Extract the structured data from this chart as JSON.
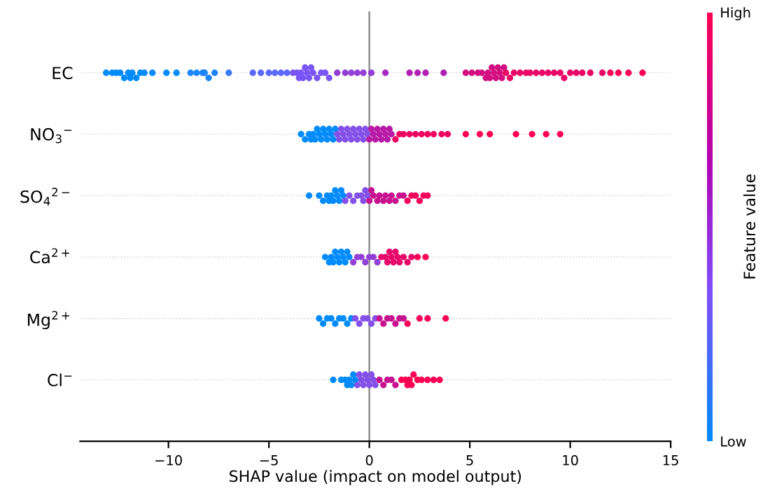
{
  "chart_data": {
    "type": "scatter",
    "orientation": "horizontal",
    "xlabel": "SHAP value (impact on model output)",
    "clabel": "Feature value",
    "categories": [
      "EC",
      "NO$_{3}$$^{−}$",
      "SO$_{4}$$^{2−}$",
      "Ca$^{2+}$",
      "Mg$^{2+}$",
      "Cl$^{−}$"
    ],
    "xlim": [
      -14.4,
      15
    ],
    "xticks": [
      {
        "value": -10,
        "label": "−10"
      },
      {
        "value": -5,
        "label": "−5"
      },
      0,
      5,
      10,
      15
    ],
    "clim": [
      0,
      1
    ],
    "cticks": [
      {
        "value": 0,
        "label": "Low"
      },
      {
        "value": 1,
        "label": "High"
      }
    ],
    "grid": "y",
    "marker": "circle",
    "ref_lines": [
      {
        "axis": "x",
        "value": 0,
        "color": "#999999"
      }
    ],
    "series": [
      {
        "x": [
          "EC",
          "EC",
          "EC",
          "EC",
          "EC",
          "EC",
          "EC",
          "EC",
          "EC",
          "EC",
          "EC",
          "EC",
          "EC",
          "EC",
          "EC",
          "EC",
          "EC",
          "EC",
          "EC",
          "EC",
          "EC",
          "EC",
          "EC",
          "EC",
          "EC",
          "EC",
          "EC",
          "EC",
          "EC",
          "EC",
          "EC",
          "EC",
          "EC",
          "EC",
          "EC",
          "EC",
          "EC",
          "EC",
          "EC",
          "EC",
          "EC",
          "EC",
          "EC",
          "EC",
          "EC",
          "EC",
          "EC",
          "EC",
          "EC",
          "EC",
          "EC",
          "EC",
          "EC",
          "EC",
          "EC",
          "EC",
          "EC",
          "EC",
          "EC",
          "EC",
          "EC",
          "EC",
          "EC",
          "EC",
          "EC",
          "EC",
          "EC",
          "EC",
          "EC",
          "EC",
          "EC",
          "EC",
          "EC",
          "EC",
          "EC",
          "EC",
          "EC",
          "EC",
          "EC",
          "EC",
          "EC",
          "EC",
          "EC",
          "EC",
          "EC",
          "EC",
          "EC"
        ],
        "values": [
          -13.1,
          -12.8,
          -12.6,
          -12.4,
          -12.2,
          -12.0,
          -11.9,
          -11.8,
          -11.6,
          -11.4,
          -11.2,
          -10.8,
          -10.1,
          -9.6,
          -8.9,
          -8.6,
          -8.3,
          -8.2,
          -8.0,
          -7.7,
          -7.0,
          -5.8,
          -5.4,
          -5.0,
          -4.7,
          -4.4,
          -4.1,
          -3.8,
          -3.6,
          -3.5,
          -3.4,
          -3.3,
          -3.2,
          -3.1,
          -3.0,
          -2.9,
          -2.8,
          -2.6,
          -2.4,
          -2.2,
          -2.0,
          -1.6,
          -1.2,
          -0.9,
          -0.6,
          -0.3,
          0.1,
          0.8,
          2.0,
          2.4,
          2.8,
          3.7,
          4.8,
          5.1,
          5.4,
          5.6,
          5.8,
          5.9,
          6.0,
          6.1,
          6.2,
          6.3,
          6.4,
          6.5,
          6.6,
          6.7,
          6.8,
          7.0,
          7.2,
          7.5,
          7.8,
          8.0,
          8.3,
          8.6,
          8.9,
          9.2,
          9.5,
          9.7,
          10.0,
          10.3,
          10.6,
          11.0,
          11.6,
          12.0,
          12.4,
          12.9,
          13.6
        ],
        "colors": [
          "#008bfb",
          "#008bfb",
          "#008bfb",
          "#008bfb",
          "#008bfb",
          "#008bfb",
          "#008bfb",
          "#008bfb",
          "#008bfb",
          "#008bfb",
          "#008bfb",
          "#008bfb",
          "#008bfb",
          "#008bfb",
          "#1c84fc",
          "#1c84fc",
          "#1c84fc",
          "#1c84fc",
          "#1c84fc",
          "#1c84fc",
          "#3a78fd",
          "#5a69fe",
          "#5a69fe",
          "#5a69fe",
          "#5a69fe",
          "#5a69fe",
          "#5a69fe",
          "#7a55f6",
          "#7a55f6",
          "#7a55f6",
          "#7a55f6",
          "#7a55f6",
          "#7a55f6",
          "#7a55f6",
          "#7a55f6",
          "#7a55f6",
          "#7a55f6",
          "#7a55f6",
          "#7a55f6",
          "#7a55f6",
          "#7a55f6",
          "#923fd6",
          "#923fd6",
          "#923fd6",
          "#923fd6",
          "#923fd6",
          "#923fd6",
          "#a82ac0",
          "#b01fb4",
          "#b01fb4",
          "#b01fb4",
          "#b01fb4",
          "#d20e80",
          "#d20e80",
          "#d20e80",
          "#d20e80",
          "#d20e80",
          "#d20e80",
          "#d20e80",
          "#d20e80",
          "#d20e80",
          "#d20e80",
          "#d20e80",
          "#d20e80",
          "#d20e80",
          "#d20e80",
          "#ea0666",
          "#ea0666",
          "#ea0666",
          "#ea0666",
          "#ea0666",
          "#ea0666",
          "#ea0666",
          "#ea0666",
          "#ea0666",
          "#ea0666",
          "#ea0666",
          "#ea0666",
          "#ea0666",
          "#ea0666",
          "#ea0666",
          "#ea0666",
          "#ea0666",
          "#fb0255",
          "#fb0255",
          "#fb0255",
          "#fb0255"
        ]
      },
      {
        "x": [
          "NO$_{3}$$^{−}$",
          "NO$_{3}$$^{−}$",
          "NO$_{3}$$^{−}$",
          "NO$_{3}$$^{−}$",
          "NO$_{3}$$^{−}$",
          "NO$_{3}$$^{−}$",
          "NO$_{3}$$^{−}$",
          "NO$_{3}$$^{−}$",
          "NO$_{3}$$^{−}$",
          "NO$_{3}$$^{−}$",
          "NO$_{3}$$^{−}$",
          "NO$_{3}$$^{−}$",
          "NO$_{3}$$^{−}$",
          "NO$_{3}$$^{−}$",
          "NO$_{3}$$^{−}$",
          "NO$_{3}$$^{−}$",
          "NO$_{3}$$^{−}$",
          "NO$_{3}$$^{−}$",
          "NO$_{3}$$^{−}$",
          "NO$_{3}$$^{−}$",
          "NO$_{3}$$^{−}$",
          "NO$_{3}$$^{−}$",
          "NO$_{3}$$^{−}$",
          "NO$_{3}$$^{−}$",
          "NO$_{3}$$^{−}$",
          "NO$_{3}$$^{−}$",
          "NO$_{3}$$^{−}$",
          "NO$_{3}$$^{−}$",
          "NO$_{3}$$^{−}$",
          "NO$_{3}$$^{−}$",
          "NO$_{3}$$^{−}$",
          "NO$_{3}$$^{−}$",
          "NO$_{3}$$^{−}$",
          "NO$_{3}$$^{−}$",
          "NO$_{3}$$^{−}$",
          "NO$_{3}$$^{−}$",
          "NO$_{3}$$^{−}$",
          "NO$_{3}$$^{−}$",
          "NO$_{3}$$^{−}$",
          "NO$_{3}$$^{−}$",
          "NO$_{3}$$^{−}$",
          "NO$_{3}$$^{−}$",
          "NO$_{3}$$^{−}$",
          "NO$_{3}$$^{−}$",
          "NO$_{3}$$^{−}$",
          "NO$_{3}$$^{−}$",
          "NO$_{3}$$^{−}$",
          "NO$_{3}$$^{−}$",
          "NO$_{3}$$^{−}$",
          "NO$_{3}$$^{−}$",
          "NO$_{3}$$^{−}$",
          "NO$_{3}$$^{−}$",
          "NO$_{3}$$^{−}$",
          "NO$_{3}$$^{−}$",
          "NO$_{3}$$^{−}$",
          "NO$_{3}$$^{−}$",
          "NO$_{3}$$^{−}$",
          "NO$_{3}$$^{−}$",
          "NO$_{3}$$^{−}$",
          "NO$_{3}$$^{−}$",
          "NO$_{3}$$^{−}$"
        ],
        "values": [
          -3.4,
          -3.2,
          -3.0,
          -2.9,
          -2.8,
          -2.7,
          -2.6,
          -2.5,
          -2.4,
          -2.3,
          -2.2,
          -2.1,
          -2.0,
          -1.9,
          -1.8,
          -1.7,
          -1.6,
          -1.5,
          -1.4,
          -1.3,
          -1.2,
          -1.1,
          -1.0,
          -0.9,
          -0.8,
          -0.7,
          -0.6,
          -0.5,
          -0.4,
          -0.3,
          -0.2,
          -0.1,
          0.0,
          0.1,
          0.2,
          0.3,
          0.4,
          0.5,
          0.6,
          0.7,
          0.8,
          0.9,
          1.0,
          1.1,
          1.3,
          1.5,
          1.7,
          2.0,
          2.3,
          2.6,
          2.9,
          3.2,
          3.6,
          3.9,
          4.8,
          5.5,
          6.0,
          7.3,
          8.1,
          8.8,
          9.5
        ],
        "colors": [
          "#008bfb",
          "#008bfb",
          "#008bfb",
          "#008bfb",
          "#008bfb",
          "#008bfb",
          "#008bfb",
          "#008bfb",
          "#008bfb",
          "#008bfb",
          "#008bfb",
          "#008bfb",
          "#008bfb",
          "#008bfb",
          "#008bfb",
          "#008bfb",
          "#8450e8",
          "#8450e8",
          "#8450e8",
          "#8450e8",
          "#8450e8",
          "#8450e8",
          "#8450e8",
          "#8450e8",
          "#8450e8",
          "#8450e8",
          "#8450e8",
          "#8450e8",
          "#8450e8",
          "#8450e8",
          "#8450e8",
          "#8450e8",
          "#b819a6",
          "#b819a6",
          "#b819a6",
          "#b819a6",
          "#b819a6",
          "#b819a6",
          "#b819a6",
          "#b819a6",
          "#b819a6",
          "#b819a6",
          "#b819a6",
          "#b819a6",
          "#ee0562",
          "#ee0562",
          "#ee0562",
          "#ee0562",
          "#ee0562",
          "#ee0562",
          "#ee0562",
          "#ee0562",
          "#ee0562",
          "#ee0562",
          "#fd0153",
          "#fd0153",
          "#fd0153",
          "#fd0153",
          "#fd0153",
          "#fd0153",
          "#fd0153"
        ]
      },
      {
        "x": [
          "SO$_{4}$$^{2−}$",
          "SO$_{4}$$^{2−}$",
          "SO$_{4}$$^{2−}$",
          "SO$_{4}$$^{2−}$",
          "SO$_{4}$$^{2−}$",
          "SO$_{4}$$^{2−}$",
          "SO$_{4}$$^{2−}$",
          "SO$_{4}$$^{2−}$",
          "SO$_{4}$$^{2−}$",
          "SO$_{4}$$^{2−}$",
          "SO$_{4}$$^{2−}$",
          "SO$_{4}$$^{2−}$",
          "SO$_{4}$$^{2−}$",
          "SO$_{4}$$^{2−}$",
          "SO$_{4}$$^{2−}$",
          "SO$_{4}$$^{2−}$",
          "SO$_{4}$$^{2−}$",
          "SO$_{4}$$^{2−}$",
          "SO$_{4}$$^{2−}$",
          "SO$_{4}$$^{2−}$",
          "SO$_{4}$$^{2−}$",
          "SO$_{4}$$^{2−}$",
          "SO$_{4}$$^{2−}$",
          "SO$_{4}$$^{2−}$",
          "SO$_{4}$$^{2−}$",
          "SO$_{4}$$^{2−}$",
          "SO$_{4}$$^{2−}$",
          "SO$_{4}$$^{2−}$",
          "SO$_{4}$$^{2−}$",
          "SO$_{4}$$^{2−}$",
          "SO$_{4}$$^{2−}$",
          "SO$_{4}$$^{2−}$",
          "SO$_{4}$$^{2−}$",
          "SO$_{4}$$^{2−}$",
          "SO$_{4}$$^{2−}$",
          "SO$_{4}$$^{2−}$",
          "SO$_{4}$$^{2−}$",
          "SO$_{4}$$^{2−}$"
        ],
        "values": [
          -3.0,
          -2.5,
          -2.3,
          -2.1,
          -2.0,
          -1.9,
          -1.8,
          -1.7,
          -1.6,
          -1.5,
          -1.4,
          -1.3,
          -1.2,
          -1.0,
          -0.8,
          -0.6,
          -0.4,
          -0.3,
          -0.2,
          -0.1,
          0.0,
          0.1,
          0.2,
          0.4,
          0.5,
          0.7,
          0.8,
          1.0,
          1.1,
          1.3,
          1.5,
          1.7,
          1.9,
          2.1,
          2.3,
          2.5,
          2.7,
          2.9
        ],
        "colors": [
          "#008bfb",
          "#008bfb",
          "#008bfb",
          "#008bfb",
          "#008bfb",
          "#008bfb",
          "#008bfb",
          "#008bfb",
          "#008bfb",
          "#008bfb",
          "#008bfb",
          "#008bfb",
          "#8450e8",
          "#8450e8",
          "#8450e8",
          "#8450e8",
          "#8450e8",
          "#8450e8",
          "#8450e8",
          "#8450e8",
          "#c8138f",
          "#c8138f",
          "#c8138f",
          "#c8138f",
          "#c8138f",
          "#c8138f",
          "#c8138f",
          "#c8138f",
          "#c8138f",
          "#c8138f",
          "#c8138f",
          "#c8138f",
          "#f2045c",
          "#f2045c",
          "#f2045c",
          "#f2045c",
          "#f2045c",
          "#f2045c"
        ]
      },
      {
        "x": [
          "Ca$^{2+}$",
          "Ca$^{2+}$",
          "Ca$^{2+}$",
          "Ca$^{2+}$",
          "Ca$^{2+}$",
          "Ca$^{2+}$",
          "Ca$^{2+}$",
          "Ca$^{2+}$",
          "Ca$^{2+}$",
          "Ca$^{2+}$",
          "Ca$^{2+}$",
          "Ca$^{2+}$",
          "Ca$^{2+}$",
          "Ca$^{2+}$",
          "Ca$^{2+}$",
          "Ca$^{2+}$",
          "Ca$^{2+}$",
          "Ca$^{2+}$",
          "Ca$^{2+}$",
          "Ca$^{2+}$",
          "Ca$^{2+}$",
          "Ca$^{2+}$",
          "Ca$^{2+}$",
          "Ca$^{2+}$",
          "Ca$^{2+}$",
          "Ca$^{2+}$",
          "Ca$^{2+}$",
          "Ca$^{2+}$",
          "Ca$^{2+}$",
          "Ca$^{2+}$",
          "Ca$^{2+}$",
          "Ca$^{2+}$",
          "Ca$^{2+}$"
        ],
        "values": [
          -2.2,
          -2.0,
          -1.9,
          -1.8,
          -1.7,
          -1.6,
          -1.5,
          -1.4,
          -1.3,
          -1.2,
          -1.1,
          -1.0,
          -0.8,
          -0.6,
          -0.4,
          -0.2,
          0.0,
          0.2,
          0.4,
          0.6,
          0.8,
          0.9,
          1.0,
          1.1,
          1.2,
          1.3,
          1.4,
          1.5,
          1.7,
          1.9,
          2.1,
          2.4,
          2.8
        ],
        "colors": [
          "#008bfb",
          "#008bfb",
          "#008bfb",
          "#008bfb",
          "#008bfb",
          "#008bfb",
          "#008bfb",
          "#008bfb",
          "#008bfb",
          "#008bfb",
          "#008bfb",
          "#008bfb",
          "#923fd6",
          "#923fd6",
          "#923fd6",
          "#923fd6",
          "#923fd6",
          "#923fd6",
          "#923fd6",
          "#e6086a",
          "#e6086a",
          "#e6086a",
          "#e6086a",
          "#e6086a",
          "#e6086a",
          "#e6086a",
          "#e6086a",
          "#e6086a",
          "#e6086a",
          "#e6086a",
          "#e6086a",
          "#f80358",
          "#f80358"
        ]
      },
      {
        "x": [
          "Mg$^{2+}$",
          "Mg$^{2+}$",
          "Mg$^{2+}$",
          "Mg$^{2+}$",
          "Mg$^{2+}$",
          "Mg$^{2+}$",
          "Mg$^{2+}$",
          "Mg$^{2+}$",
          "Mg$^{2+}$",
          "Mg$^{2+}$",
          "Mg$^{2+}$",
          "Mg$^{2+}$",
          "Mg$^{2+}$",
          "Mg$^{2+}$",
          "Mg$^{2+}$",
          "Mg$^{2+}$",
          "Mg$^{2+}$",
          "Mg$^{2+}$",
          "Mg$^{2+}$",
          "Mg$^{2+}$",
          "Mg$^{2+}$",
          "Mg$^{2+}$",
          "Mg$^{2+}$",
          "Mg$^{2+}$",
          "Mg$^{2+}$",
          "Mg$^{2+}$"
        ],
        "values": [
          -2.5,
          -2.3,
          -2.1,
          -1.9,
          -1.7,
          -1.5,
          -1.3,
          -1.1,
          -0.9,
          -0.7,
          -0.5,
          -0.3,
          -0.1,
          0.1,
          0.3,
          0.5,
          0.7,
          0.9,
          1.1,
          1.3,
          1.5,
          1.7,
          1.9,
          2.5,
          2.9,
          3.8
        ],
        "colors": [
          "#008bfb",
          "#008bfb",
          "#008bfb",
          "#008bfb",
          "#008bfb",
          "#008bfb",
          "#008bfb",
          "#008bfb",
          "#008bfb",
          "#8450e8",
          "#8450e8",
          "#8450e8",
          "#8450e8",
          "#8450e8",
          "#8450e8",
          "#c8138f",
          "#c8138f",
          "#c8138f",
          "#c8138f",
          "#c8138f",
          "#c8138f",
          "#c8138f",
          "#f80358",
          "#f80358",
          "#f80358",
          "#f80358"
        ]
      },
      {
        "x": [
          "Cl$^{−}$",
          "Cl$^{−}$",
          "Cl$^{−}$",
          "Cl$^{−}$",
          "Cl$^{−}$",
          "Cl$^{−}$",
          "Cl$^{−}$",
          "Cl$^{−}$",
          "Cl$^{−}$",
          "Cl$^{−}$",
          "Cl$^{−}$",
          "Cl$^{−}$",
          "Cl$^{−}$",
          "Cl$^{−}$",
          "Cl$^{−}$",
          "Cl$^{−}$",
          "Cl$^{−}$",
          "Cl$^{−}$",
          "Cl$^{−}$",
          "Cl$^{−}$",
          "Cl$^{−}$",
          "Cl$^{−}$",
          "Cl$^{−}$",
          "Cl$^{−}$",
          "Cl$^{−}$",
          "Cl$^{−}$",
          "Cl$^{−}$",
          "Cl$^{−}$",
          "Cl$^{−}$",
          "Cl$^{−}$",
          "Cl$^{−}$",
          "Cl$^{−}$",
          "Cl$^{−}$",
          "Cl$^{−}$"
        ],
        "values": [
          -1.8,
          -1.4,
          -1.2,
          -1.1,
          -1.0,
          -0.9,
          -0.8,
          -0.7,
          -0.6,
          -0.5,
          -0.4,
          -0.3,
          -0.2,
          -0.1,
          0.0,
          0.1,
          0.2,
          0.3,
          0.5,
          0.7,
          0.9,
          1.1,
          1.3,
          1.6,
          1.8,
          1.9,
          2.0,
          2.1,
          2.2,
          2.4,
          2.6,
          2.9,
          3.2,
          3.5
        ],
        "colors": [
          "#008bfb",
          "#008bfb",
          "#008bfb",
          "#008bfb",
          "#008bfb",
          "#008bfb",
          "#008bfb",
          "#008bfb",
          "#8450e8",
          "#8450e8",
          "#8450e8",
          "#8450e8",
          "#8450e8",
          "#8450e8",
          "#8450e8",
          "#8450e8",
          "#8450e8",
          "#8450e8",
          "#c8138f",
          "#c8138f",
          "#c8138f",
          "#c8138f",
          "#c8138f",
          "#fb0255",
          "#fb0255",
          "#fb0255",
          "#fb0255",
          "#fb0255",
          "#fb0255",
          "#fb0255",
          "#fb0255",
          "#fb0255",
          "#fb0255",
          "#fb0255"
        ]
      }
    ]
  }
}
